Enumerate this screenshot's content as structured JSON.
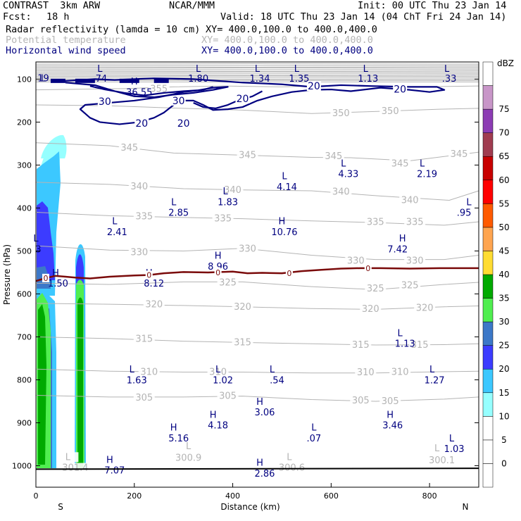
{
  "header": {
    "model": "CONTRAST  3km ARW",
    "center": "NCAR/MMM",
    "init": "Init: 00 UTC Thu 23 Jan 14",
    "fcst_label": "Fcst:",
    "fcst_value": "18 h",
    "valid": "Valid: 18 UTC Thu 23 Jan 14 (04 ChT Fri 24 Jan 14)"
  },
  "fields": [
    {
      "name": "Radar reflectivity (lamda = 10 cm)",
      "xy": "XY= 400.0,100.0 to 400.0,400.0",
      "color": "#000000"
    },
    {
      "name": "Potential temperature",
      "xy": "XY= 400.0,100.0 to 400.0,400.0",
      "color": "#b4b4b4"
    },
    {
      "name": "Horizontal wind speed",
      "xy": "XY= 400.0,100.0 to 400.0,400.0",
      "color": "#000080"
    }
  ],
  "chart_data": {
    "type": "cross-section",
    "ylabel": "Pressure (hPa)",
    "xlabel": "Distance (km)",
    "x_ticks": [
      0,
      200,
      400,
      600,
      800
    ],
    "y_ticks": [
      100,
      200,
      300,
      400,
      500,
      600,
      700,
      800,
      900,
      1000
    ],
    "x_range": [
      0,
      900
    ],
    "y_range": [
      1050,
      60
    ],
    "end_labels": {
      "left": "S",
      "right": "N"
    },
    "colorbar": {
      "unit": "dBZ",
      "levels": [
        {
          "label": "",
          "color": "#ffffff"
        },
        {
          "label": "0",
          "color": "#ffffff"
        },
        {
          "label": "5",
          "color": "#ffffff"
        },
        {
          "label": "10",
          "color": "#96ffff"
        },
        {
          "label": "15",
          "color": "#3cc8ff"
        },
        {
          "label": "20",
          "color": "#3c3cff"
        },
        {
          "label": "25",
          "color": "#3c78c8"
        },
        {
          "label": "30",
          "color": "#50ee50"
        },
        {
          "label": "35",
          "color": "#00aa00"
        },
        {
          "label": "40",
          "color": "#ffdc32"
        },
        {
          "label": "45",
          "color": "#ffa550"
        },
        {
          "label": "50",
          "color": "#ff5a00"
        },
        {
          "label": "55",
          "color": "#ff0000"
        },
        {
          "label": "60",
          "color": "#c80000"
        },
        {
          "label": "65",
          "color": "#a03c50"
        },
        {
          "label": "70",
          "color": "#8c3cb4"
        },
        {
          "label": "75",
          "color": "#c896c8"
        },
        {
          "label": "",
          "color": "#ffffff"
        }
      ]
    },
    "theta_labels": [
      {
        "text": "355",
        "x": 250,
        "p": 123
      },
      {
        "text": "350",
        "x": 620,
        "p": 180
      },
      {
        "text": "350",
        "x": 720,
        "p": 175
      },
      {
        "text": "345",
        "x": 190,
        "p": 260
      },
      {
        "text": "345",
        "x": 430,
        "p": 277
      },
      {
        "text": "345",
        "x": 605,
        "p": 280
      },
      {
        "text": "345",
        "x": 740,
        "p": 297
      },
      {
        "text": "345",
        "x": 860,
        "p": 275
      },
      {
        "text": "340",
        "x": 210,
        "p": 350
      },
      {
        "text": "340",
        "x": 400,
        "p": 358
      },
      {
        "text": "340",
        "x": 620,
        "p": 362
      },
      {
        "text": "340",
        "x": 760,
        "p": 382
      },
      {
        "text": "335",
        "x": 220,
        "p": 420
      },
      {
        "text": "335",
        "x": 380,
        "p": 425
      },
      {
        "text": "335",
        "x": 690,
        "p": 433
      },
      {
        "text": "335",
        "x": 770,
        "p": 433
      },
      {
        "text": "330",
        "x": 210,
        "p": 503
      },
      {
        "text": "330",
        "x": 430,
        "p": 495
      },
      {
        "text": "330",
        "x": 650,
        "p": 523
      },
      {
        "text": "330",
        "x": 770,
        "p": 523
      },
      {
        "text": "325",
        "x": 390,
        "p": 574
      },
      {
        "text": "325",
        "x": 690,
        "p": 588
      },
      {
        "text": "325",
        "x": 760,
        "p": 580
      },
      {
        "text": "320",
        "x": 240,
        "p": 625
      },
      {
        "text": "320",
        "x": 420,
        "p": 630
      },
      {
        "text": "320",
        "x": 680,
        "p": 635
      },
      {
        "text": "320",
        "x": 790,
        "p": 633
      },
      {
        "text": "315",
        "x": 220,
        "p": 705
      },
      {
        "text": "315",
        "x": 420,
        "p": 713
      },
      {
        "text": "315",
        "x": 660,
        "p": 719
      },
      {
        "text": "315",
        "x": 780,
        "p": 719
      },
      {
        "text": "310",
        "x": 230,
        "p": 782
      },
      {
        "text": "310",
        "x": 370,
        "p": 782
      },
      {
        "text": "310",
        "x": 670,
        "p": 783
      },
      {
        "text": "310",
        "x": 740,
        "p": 782
      },
      {
        "text": "305",
        "x": 220,
        "p": 842
      },
      {
        "text": "305",
        "x": 390,
        "p": 838
      },
      {
        "text": "305",
        "x": 660,
        "p": 848
      },
      {
        "text": "305",
        "x": 720,
        "p": 850
      },
      {
        "text": "L",
        "x": 65,
        "p": 980
      },
      {
        "text": "301.4",
        "x": 80,
        "p": 1005
      },
      {
        "text": "L",
        "x": 310,
        "p": 955
      },
      {
        "text": "300.9",
        "x": 310,
        "p": 982
      },
      {
        "text": "L",
        "x": 515,
        "p": 980
      },
      {
        "text": "300.6",
        "x": 520,
        "p": 1005
      },
      {
        "text": "L",
        "x": 815,
        "p": 960
      },
      {
        "text": "300.1",
        "x": 825,
        "p": 988
      }
    ],
    "wind_contours": [
      {
        "level": "20",
        "x": 565,
        "p": 116
      },
      {
        "level": "20",
        "x": 740,
        "p": 123
      },
      {
        "level": "30",
        "x": 140,
        "p": 152
      },
      {
        "level": "30",
        "x": 290,
        "p": 150
      },
      {
        "level": "20",
        "x": 420,
        "p": 145
      },
      {
        "level": "20",
        "x": 215,
        "p": 203
      },
      {
        "level": "20",
        "x": 300,
        "p": 203
      }
    ],
    "wind_extrema": [
      {
        "type": "L",
        "value": "19",
        "x": 15,
        "p": 97,
        "vx": 15,
        "vp": 97
      },
      {
        "type": "L",
        "value": ".74",
        "x": 130,
        "p": 75,
        "vx": 130,
        "vp": 98
      },
      {
        "type": "H",
        "value": "36.55",
        "x": 200,
        "p": 104,
        "vx": 210,
        "vp": 130
      },
      {
        "type": "L",
        "value": "1.80",
        "x": 330,
        "p": 75,
        "vx": 330,
        "vp": 98
      },
      {
        "type": "L",
        "value": "1.34",
        "x": 450,
        "p": 75,
        "vx": 455,
        "vp": 98
      },
      {
        "type": "L",
        "value": "1.35",
        "x": 530,
        "p": 75,
        "vx": 535,
        "vp": 98
      },
      {
        "type": "L",
        "value": "1.13",
        "x": 670,
        "p": 75,
        "vx": 675,
        "vp": 98
      },
      {
        "type": "L",
        "value": ".33",
        "x": 835,
        "p": 75,
        "vx": 840,
        "vp": 98
      },
      {
        "type": "L",
        "value": "4.14",
        "x": 505,
        "p": 325,
        "vx": 510,
        "vp": 350
      },
      {
        "type": "L",
        "value": "4.33",
        "x": 625,
        "p": 295,
        "vx": 635,
        "vp": 320
      },
      {
        "type": "L",
        "value": "2.19",
        "x": 785,
        "p": 295,
        "vx": 795,
        "vp": 320
      },
      {
        "type": "L",
        "value": "1.83",
        "x": 385,
        "p": 360,
        "vx": 390,
        "vp": 385
      },
      {
        "type": "L",
        "value": "2.85",
        "x": 280,
        "p": 385,
        "vx": 290,
        "vp": 410
      },
      {
        "type": "L",
        "value": ".95",
        "x": 880,
        "p": 385,
        "vx": 870,
        "vp": 410
      },
      {
        "type": "L",
        "value": "2.41",
        "x": 160,
        "p": 430,
        "vx": 165,
        "vp": 455
      },
      {
        "type": "H",
        "value": "10.76",
        "x": 500,
        "p": 430,
        "vx": 505,
        "vp": 455
      },
      {
        "type": "H",
        "value": "7.42",
        "x": 745,
        "p": 470,
        "vx": 735,
        "vp": 495
      },
      {
        "type": "L",
        "value": "3",
        "x": 0,
        "p": 470,
        "vx": 5,
        "vp": 495
      },
      {
        "type": "H",
        "value": "8.96",
        "x": 370,
        "p": 510,
        "vx": 370,
        "vp": 535
      },
      {
        "type": "H",
        "value": "1.50",
        "x": 40,
        "p": 550,
        "vx": 45,
        "vp": 575
      },
      {
        "type": "H",
        "value": "8.12",
        "x": 230,
        "p": 550,
        "vx": 240,
        "vp": 575
      },
      {
        "type": "L",
        "value": "1.13",
        "x": 740,
        "p": 690,
        "vx": 750,
        "vp": 715
      },
      {
        "type": "L",
        "value": "1.63",
        "x": 195,
        "p": 775,
        "vx": 205,
        "vp": 800
      },
      {
        "type": "L",
        "value": "1.02",
        "x": 370,
        "p": 775,
        "vx": 380,
        "vp": 800
      },
      {
        "type": "L",
        "value": ".54",
        "x": 480,
        "p": 775,
        "vx": 490,
        "vp": 800
      },
      {
        "type": "L",
        "value": "1.27",
        "x": 805,
        "p": 775,
        "vx": 810,
        "vp": 800
      },
      {
        "type": "H",
        "value": "3.06",
        "x": 455,
        "p": 850,
        "vx": 465,
        "vp": 875
      },
      {
        "type": "H",
        "value": "4.18",
        "x": 360,
        "p": 880,
        "vx": 370,
        "vp": 905
      },
      {
        "type": "H",
        "value": "3.46",
        "x": 720,
        "p": 880,
        "vx": 725,
        "vp": 905
      },
      {
        "type": "H",
        "value": "5.16",
        "x": 280,
        "p": 910,
        "vx": 290,
        "vp": 935
      },
      {
        "type": "L",
        "value": ".07",
        "x": 565,
        "p": 910,
        "vx": 565,
        "vp": 935
      },
      {
        "type": "L",
        "value": "1.03",
        "x": 845,
        "p": 935,
        "vx": 850,
        "vp": 960
      },
      {
        "type": "H",
        "value": "7.07",
        "x": 150,
        "p": 985,
        "vx": 160,
        "vp": 1010
      },
      {
        "type": "H",
        "value": "2.86",
        "x": 455,
        "p": 992,
        "vx": 465,
        "vp": 1017
      }
    ],
    "zero_contour_label": "0",
    "zero_contour": [
      [
        0,
        570
      ],
      [
        20,
        563
      ],
      [
        40,
        558
      ],
      [
        60,
        560
      ],
      [
        80,
        562
      ],
      [
        110,
        564
      ],
      [
        150,
        560
      ],
      [
        200,
        557
      ],
      [
        230,
        556
      ],
      [
        260,
        552
      ],
      [
        300,
        549
      ],
      [
        350,
        550
      ],
      [
        400,
        548
      ],
      [
        430,
        552
      ],
      [
        460,
        551
      ],
      [
        500,
        552
      ],
      [
        540,
        547
      ],
      [
        580,
        544
      ],
      [
        620,
        541
      ],
      [
        660,
        540
      ],
      [
        700,
        540
      ],
      [
        760,
        541
      ],
      [
        820,
        540
      ],
      [
        870,
        540
      ],
      [
        900,
        540
      ]
    ]
  }
}
